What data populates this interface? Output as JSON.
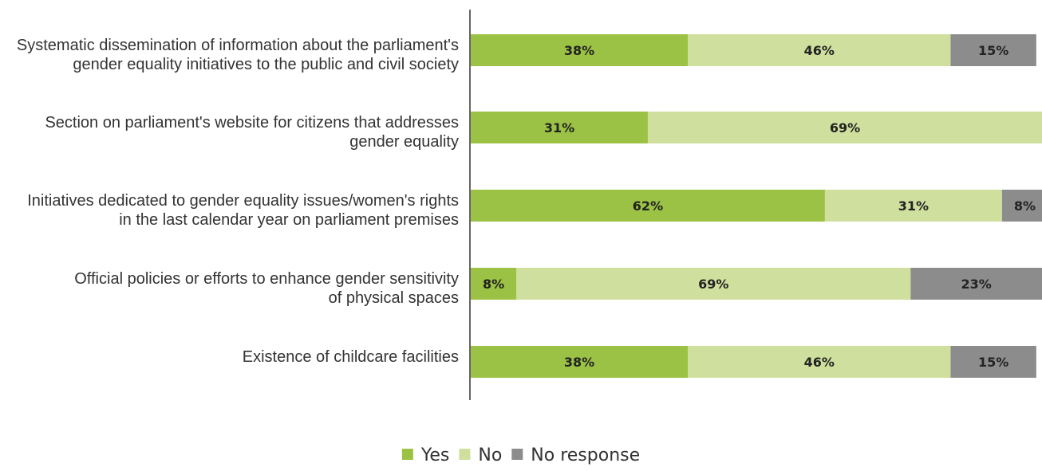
{
  "chart_data": {
    "type": "bar",
    "orientation": "horizontal",
    "stacked": true,
    "categories": [
      [
        "Systematic dissemination of information about the parliament's",
        "gender equality initiatives to the public and civil society"
      ],
      [
        "Section on parliament's website for citizens that addresses",
        "gender equality"
      ],
      [
        "Initiatives dedicated to gender equality issues/women's rights",
        "in the last calendar year on parliament premises"
      ],
      [
        "Official policies or efforts to enhance gender sensitivity",
        "of physical spaces"
      ],
      [
        "Existence of childcare facilities"
      ]
    ],
    "series": [
      {
        "name": "Yes",
        "color": "#9bc244",
        "values": [
          38,
          31,
          62,
          8,
          38
        ]
      },
      {
        "name": "No",
        "color": "#cfdf9d",
        "values": [
          46,
          69,
          31,
          69,
          46
        ]
      },
      {
        "name": "No response",
        "color": "#8c8c8c",
        "values": [
          15,
          0,
          8,
          23,
          15
        ]
      }
    ],
    "value_suffix": "%",
    "xlim": [
      0,
      100
    ],
    "grid": false,
    "legend_position": "bottom-center"
  }
}
